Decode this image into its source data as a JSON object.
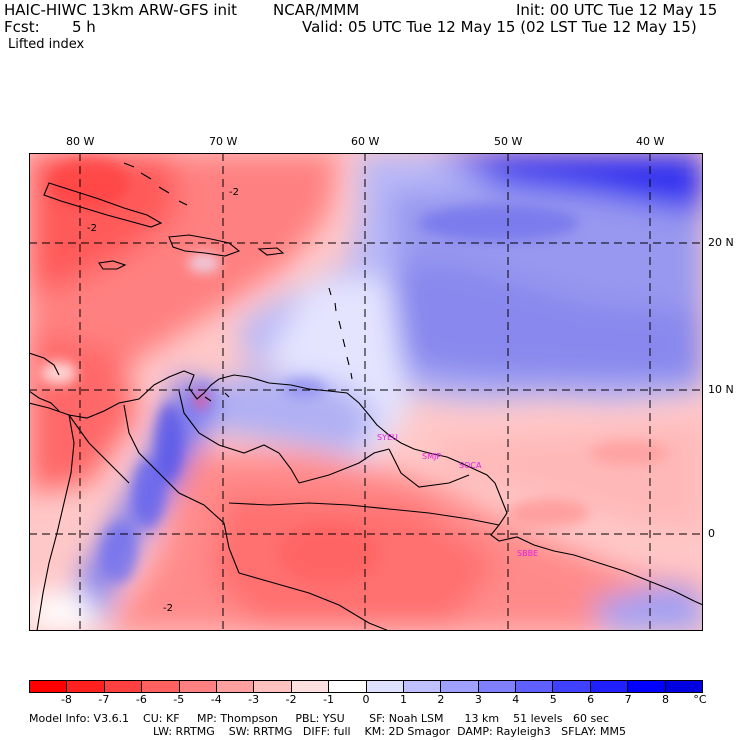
{
  "header": {
    "model": "HAIC-HIWC 13km ARW-GFS init",
    "center": "NCAR/MMM",
    "init": "Init: 00 UTC Tue 12 May 15",
    "fcst_label": "Fcst:",
    "fcst_value": "5 h",
    "valid": "Valid: 05 UTC Tue 12 May 15 (02 LST Tue 12 May 15)",
    "field": "Lifted index"
  },
  "map": {
    "lon_labels": [
      "80 W",
      "70 W",
      "60 W",
      "50 W",
      "40 W"
    ],
    "lat_labels": [
      "20 N",
      "10 N",
      "0"
    ],
    "stations": [
      "SYEU",
      "SMJP",
      "SOCA",
      "SBBE"
    ],
    "contour_labels": [
      "-2",
      "-2",
      "-2"
    ]
  },
  "colorbar": {
    "labels": [
      "-8",
      "-7",
      "-6",
      "-5",
      "-4",
      "-3",
      "-2",
      "-1",
      "0",
      "1",
      "2",
      "3",
      "4",
      "5",
      "6",
      "7",
      "8"
    ],
    "unit": "°C",
    "colors": [
      "#ff0000",
      "#ff2020",
      "#ff4040",
      "#ff6060",
      "#ff8080",
      "#ffa0a0",
      "#ffc0c0",
      "#ffe0e0",
      "#ffffff",
      "#e0e0ff",
      "#c0c0ff",
      "#a0a0ff",
      "#8080ff",
      "#6060ff",
      "#4040ff",
      "#2020ff",
      "#0000ff",
      "#0000e0"
    ]
  },
  "footer": {
    "line1": "Model Info: V3.6.1    CU: KF     MP: Thompson     PBL: YSU       SF: Noah LSM      13 km    51 levels   60 sec",
    "line2": "LW: RRTMG    SW: RRTMG   DIFF: full    KM: 2D Smagor  DAMP: Rayleigh3   SFLAY: MM5"
  }
}
